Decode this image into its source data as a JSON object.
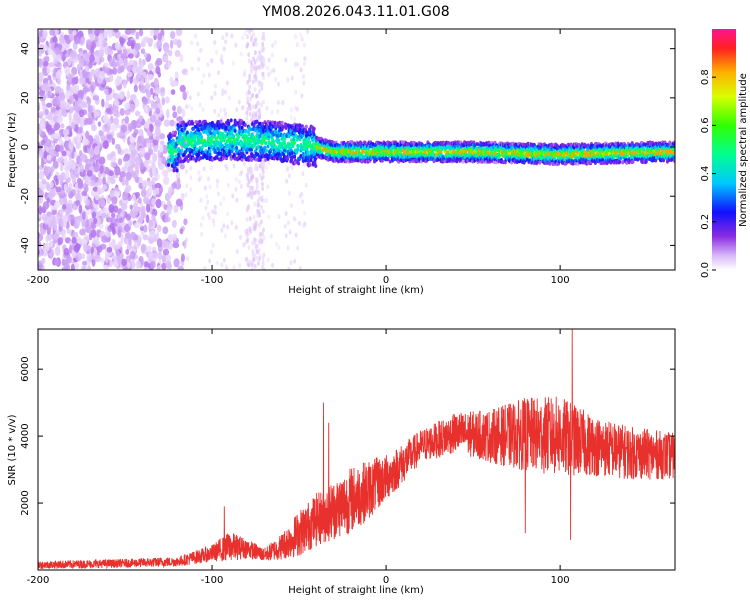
{
  "title": "YM08.2026.043.11.01.G08",
  "chart_data": [
    {
      "type": "heatmap",
      "xlabel": "Height of straight line (km)",
      "ylabel": "Frequency (Hz)",
      "xlim": [
        -200,
        166
      ],
      "ylim": [
        -50,
        48
      ],
      "xticks": [
        -200,
        -100,
        0,
        100
      ],
      "yticks": [
        -40,
        -20,
        0,
        20,
        40
      ],
      "colorbar": {
        "label": "Normalized spectral amplitude",
        "range": [
          0,
          1
        ],
        "ticks": [
          "0.0",
          "0.2",
          "0.4",
          "0.6",
          "0.8"
        ],
        "tick_values": [
          0.0,
          0.2,
          0.4,
          0.6,
          0.8
        ]
      },
      "description_points": {
        "noise_region_x": [
          -200,
          -115
        ],
        "trace_freq_hz": [
          [
            -120,
            2
          ],
          [
            -90,
            3
          ],
          [
            -60,
            2
          ],
          [
            -40,
            0
          ],
          [
            -30,
            -2
          ],
          [
            0,
            -2
          ],
          [
            50,
            -2
          ],
          [
            100,
            -3
          ],
          [
            160,
            -2
          ]
        ],
        "vertical_noise_band_x": [
          -80,
          -70
        ]
      }
    },
    {
      "type": "line",
      "xlabel": "Height of straight line (km)",
      "ylabel": "SNR (10 * v/v)",
      "xlim": [
        -200,
        166
      ],
      "ylim": [
        0,
        7200
      ],
      "xticks": [
        -200,
        -100,
        0,
        100
      ],
      "yticks": [
        2000,
        4000,
        6000
      ],
      "color": "#e8302c",
      "envelope": {
        "x": [
          -200,
          -150,
          -120,
          -100,
          -90,
          -80,
          -70,
          -60,
          -50,
          -40,
          -30,
          -20,
          -10,
          0,
          10,
          20,
          40,
          60,
          80,
          100,
          120,
          140,
          166
        ],
        "mean": [
          150,
          200,
          250,
          500,
          700,
          650,
          450,
          700,
          1100,
          1500,
          1800,
          2100,
          2400,
          2750,
          3200,
          3700,
          4100,
          4000,
          4050,
          4000,
          3700,
          3500,
          3400
        ],
        "amp": [
          120,
          130,
          150,
          250,
          450,
          300,
          200,
          400,
          700,
          800,
          900,
          1000,
          900,
          700,
          600,
          500,
          600,
          800,
          1100,
          1200,
          900,
          800,
          700
        ]
      },
      "spikes": [
        {
          "x": -93,
          "y": 1900
        },
        {
          "x": -36,
          "y": 5000
        },
        {
          "x": -33,
          "y": 4400
        },
        {
          "x": 107,
          "y": 7200
        },
        {
          "x": 106,
          "y": 900
        },
        {
          "x": 80,
          "y": 1100
        }
      ]
    }
  ]
}
